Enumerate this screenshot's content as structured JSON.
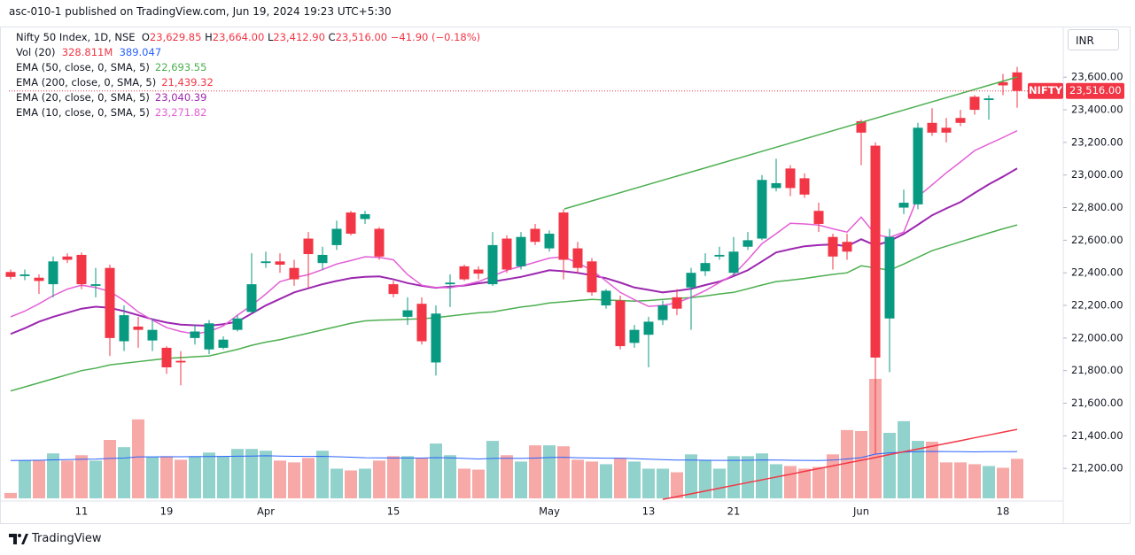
{
  "header": "asc-010-1 published on TradingView.com, Jun 19, 2024 19:23 UTC+5:30",
  "footer": "TradingView",
  "currency": "INR",
  "chart_data": {
    "type": "candlestick",
    "legend_title": "Nifty 50 Index, 1D, NSE",
    "legend_keys": [
      "O",
      "H",
      "L",
      "C"
    ],
    "legend_labels": {
      "open": "23,629.85",
      "high": "23,664.00",
      "low": "23,412.90",
      "close": "23,516.00"
    },
    "change": {
      "value": -41.9,
      "label": "−41.90"
    },
    "change_pct": {
      "value": -0.18,
      "label": "(−0.18%)"
    },
    "symbol_tag": "NIFTY",
    "up_color": "#089981",
    "down_color": "#f23645",
    "categories": [
      null,
      null,
      null,
      null,
      null,
      "11",
      null,
      null,
      null,
      null,
      null,
      "19",
      null,
      null,
      null,
      null,
      null,
      null,
      "Apr",
      null,
      null,
      null,
      null,
      null,
      null,
      null,
      null,
      "15",
      null,
      null,
      null,
      null,
      null,
      null,
      null,
      null,
      null,
      null,
      "May",
      null,
      null,
      null,
      null,
      null,
      null,
      "13",
      null,
      null,
      null,
      null,
      null,
      "21",
      null,
      null,
      null,
      null,
      null,
      null,
      null,
      null,
      "Jun",
      null,
      null,
      null,
      null,
      null,
      null,
      null,
      null,
      null,
      "18",
      null
    ],
    "open": [
      22405,
      22380,
      22370,
      22330,
      22500,
      22510,
      22320,
      22430,
      21980,
      22070,
      21985,
      21940,
      21860,
      22000,
      21930,
      21940,
      22050,
      22160,
      22460,
      22470,
      22430,
      22610,
      22460,
      22570,
      22770,
      22730,
      22670,
      22330,
      22130,
      22210,
      21850,
      22330,
      22440,
      22420,
      22330,
      22610,
      22440,
      22670,
      22550,
      22770,
      22550,
      22470,
      22200,
      22230,
      21970,
      22020,
      22110,
      22250,
      22310,
      22410,
      22500,
      22400,
      22560,
      22610,
      22920,
      23040,
      22980,
      22780,
      22620,
      22590,
      23330,
      23180,
      22120,
      22800,
      22820,
      23320,
      23290,
      23350,
      23480,
      23460,
      23570,
      23629.85
    ],
    "high": [
      22420,
      22420,
      22390,
      22500,
      22520,
      22525,
      22430,
      22450,
      22200,
      22130,
      22120,
      21950,
      21920,
      22080,
      22110,
      22010,
      22140,
      22520,
      22530,
      22520,
      22480,
      22650,
      22560,
      22720,
      22780,
      22780,
      22680,
      22350,
      22250,
      22250,
      22200,
      22390,
      22450,
      22440,
      22650,
      22630,
      22650,
      22700,
      22660,
      22790,
      22590,
      22490,
      22300,
      22260,
      22080,
      22130,
      22230,
      22300,
      22430,
      22520,
      22560,
      22620,
      22650,
      23000,
      23100,
      23060,
      23010,
      22830,
      22640,
      22640,
      23340,
      23200,
      22670,
      22910,
      23320,
      23410,
      23350,
      23400,
      23490,
      23490,
      23620,
      23664
    ],
    "low": [
      22360,
      22355,
      22270,
      22250,
      22460,
      22300,
      22250,
      21890,
      21920,
      21940,
      21920,
      21780,
      21710,
      21960,
      21900,
      21930,
      22040,
      22150,
      22430,
      22400,
      22320,
      22310,
      22420,
      22540,
      22630,
      22700,
      22480,
      22250,
      22080,
      21960,
      21770,
      22190,
      22350,
      22360,
      22320,
      22400,
      22420,
      22570,
      22530,
      22360,
      22400,
      22260,
      22180,
      21930,
      21940,
      21820,
      22080,
      22140,
      22050,
      22380,
      22480,
      22380,
      22540,
      22600,
      22900,
      22870,
      22860,
      22650,
      22420,
      22480,
      23060,
      21290,
      21790,
      22760,
      22790,
      23240,
      23200,
      23300,
      23370,
      23340,
      23490,
      23412.9
    ],
    "close": [
      22375,
      22390,
      22350,
      22470,
      22480,
      22330,
      22330,
      22000,
      22140,
      22050,
      22050,
      21820,
      21850,
      22040,
      22090,
      21990,
      22120,
      22330,
      22470,
      22450,
      22360,
      22515,
      22510,
      22670,
      22640,
      22760,
      22500,
      22270,
      22170,
      21980,
      22150,
      22340,
      22360,
      22395,
      22570,
      22420,
      22620,
      22590,
      22640,
      22480,
      22430,
      22280,
      22290,
      21950,
      22050,
      22100,
      22200,
      22180,
      22400,
      22460,
      22510,
      22530,
      22600,
      22970,
      22950,
      22920,
      22880,
      22700,
      22500,
      22530,
      23260,
      21880,
      22620,
      22830,
      23290,
      23260,
      23260,
      23320,
      23400,
      23470,
      23550,
      23516
    ],
    "volume": {
      "name": "Vol (20)",
      "up_color": "#92d2cc",
      "down_color": "#f7a9a7",
      "ma_color": "#2962ff",
      "values": [
        45,
        314,
        314,
        374,
        314,
        359,
        314,
        486,
        426,
        657,
        344,
        351,
        321,
        351,
        381,
        351,
        411,
        411,
        396,
        314,
        299,
        336,
        396,
        247,
        232,
        247,
        314,
        351,
        351,
        336,
        456,
        359,
        247,
        239,
        478,
        359,
        306,
        441,
        441,
        433,
        321,
        306,
        284,
        336,
        306,
        247,
        247,
        217,
        366,
        321,
        247,
        351,
        351,
        374,
        284,
        269,
        247,
        261,
        366,
        568,
        560,
        994,
        545,
        642,
        478,
        471,
        299,
        299,
        284,
        269,
        254,
        328.811
      ],
      "value_label": "328.811M",
      "ma_values": [
        315,
        316,
        317,
        320,
        322,
        325,
        327,
        332,
        335,
        345,
        345,
        346,
        346,
        347,
        348,
        349,
        351,
        352,
        354,
        352,
        350,
        349,
        350,
        346,
        342,
        338,
        337,
        336,
        336,
        335,
        339,
        337,
        332,
        328,
        332,
        333,
        332,
        335,
        340,
        341,
        338,
        336,
        334,
        334,
        330,
        326,
        322,
        318,
        318,
        317,
        316,
        316,
        317,
        319,
        318,
        317,
        316,
        315,
        318,
        328,
        339,
        368,
        378,
        385,
        388,
        390,
        389,
        388,
        387,
        388,
        388,
        389.047
      ]
    },
    "overlays": [
      {
        "name": "EMA (50, close, 0, SMA, 5)",
        "color": "#4caf50",
        "value_label": "22,693.55",
        "values": [
          21675,
          21700,
          21725,
          21750,
          21775,
          21800,
          21815,
          21835,
          21845,
          21855,
          21865,
          21875,
          21880,
          21885,
          21890,
          21910,
          21930,
          21955,
          21975,
          21990,
          22010,
          22030,
          22050,
          22070,
          22090,
          22105,
          22110,
          22112,
          22115,
          22118,
          22125,
          22135,
          22145,
          22155,
          22160,
          22175,
          22190,
          22200,
          22215,
          22222,
          22230,
          22237,
          22233,
          22230,
          22226,
          22230,
          22237,
          22243,
          22248,
          22258,
          22270,
          22280,
          22302,
          22325,
          22346,
          22355,
          22365,
          22378,
          22390,
          22400,
          22443,
          22430,
          22416,
          22454,
          22495,
          22536,
          22563,
          22590,
          22617,
          22644,
          22670,
          22693.55
        ]
      },
      {
        "name": "EMA (200, close, 0, SMA, 5)",
        "color": "#f23645",
        "value_label": "21,439.32",
        "values": [
          null,
          null,
          null,
          null,
          null,
          null,
          null,
          null,
          null,
          null,
          null,
          null,
          null,
          null,
          null,
          null,
          null,
          null,
          null,
          null,
          null,
          null,
          null,
          null,
          null,
          null,
          null,
          null,
          null,
          null,
          null,
          null,
          null,
          null,
          null,
          null,
          null,
          null,
          null,
          null,
          null,
          null,
          null,
          null,
          null,
          null,
          21010,
          21027,
          21044,
          21061,
          21079,
          21096,
          21113,
          21130,
          21147,
          21164,
          21182,
          21199,
          21216,
          21233,
          21250,
          21267,
          21285,
          21302,
          21319,
          21336,
          21353,
          21370,
          21388,
          21405,
          21422,
          21439.32
        ]
      },
      {
        "name": "EMA (20, close, 0, SMA, 5)",
        "color": "#9c27b0",
        "value_label": "23,040.39",
        "values": [
          22025,
          22060,
          22100,
          22130,
          22155,
          22180,
          22192,
          22185,
          22165,
          22140,
          22115,
          22095,
          22082,
          22078,
          22075,
          22085,
          22100,
          22150,
          22200,
          22240,
          22280,
          22305,
          22330,
          22350,
          22367,
          22375,
          22378,
          22360,
          22337,
          22320,
          22308,
          22315,
          22322,
          22335,
          22346,
          22360,
          22375,
          22395,
          22416,
          22410,
          22400,
          22385,
          22367,
          22340,
          22310,
          22295,
          22280,
          22290,
          22302,
          22325,
          22346,
          22380,
          22416,
          22470,
          22525,
          22545,
          22563,
          22570,
          22574,
          22563,
          22606,
          22568,
          22595,
          22639,
          22695,
          22753,
          22795,
          22834,
          22890,
          22943,
          22990,
          23040.39
        ]
      },
      {
        "name": "EMA (10, close, 0, SMA, 5)",
        "color": "#e45fd6",
        "value_label": "23,271.82",
        "values": [
          22130,
          22165,
          22210,
          22260,
          22300,
          22324,
          22310,
          22285,
          22230,
          22160,
          22110,
          22064,
          22040,
          22025,
          22040,
          22074,
          22140,
          22200,
          22270,
          22346,
          22370,
          22389,
          22420,
          22454,
          22475,
          22498,
          22495,
          22480,
          22389,
          22324,
          22310,
          22308,
          22325,
          22346,
          22380,
          22416,
          22440,
          22465,
          22490,
          22498,
          22460,
          22416,
          22350,
          22280,
          22235,
          22194,
          22200,
          22216,
          22250,
          22291,
          22340,
          22389,
          22480,
          22579,
          22640,
          22704,
          22700,
          22693,
          22670,
          22650,
          22742,
          22634,
          22617,
          22650,
          22867,
          22940,
          23013,
          23080,
          23150,
          23190,
          23230,
          23271.82
        ]
      }
    ],
    "ylim": [
      21000,
      23900
    ],
    "yticks": [
      {
        "value": 21200,
        "label": "21,200.00"
      },
      {
        "value": 21400,
        "label": "21,400.00"
      },
      {
        "value": 21600,
        "label": "21,600.00"
      },
      {
        "value": 21800,
        "label": "21,800.00"
      },
      {
        "value": 22000,
        "label": "22,000.00"
      },
      {
        "value": 22200,
        "label": "22,200.00"
      },
      {
        "value": 22400,
        "label": "22,400.00"
      },
      {
        "value": 22600,
        "label": "22,600.00"
      },
      {
        "value": 22800,
        "label": "22,800.00"
      },
      {
        "value": 23000,
        "label": "23,000.00"
      },
      {
        "value": 23200,
        "label": "23,200.00"
      },
      {
        "value": 23400,
        "label": "23,400.00"
      },
      {
        "value": 23600,
        "label": "23,600.00"
      }
    ]
  }
}
